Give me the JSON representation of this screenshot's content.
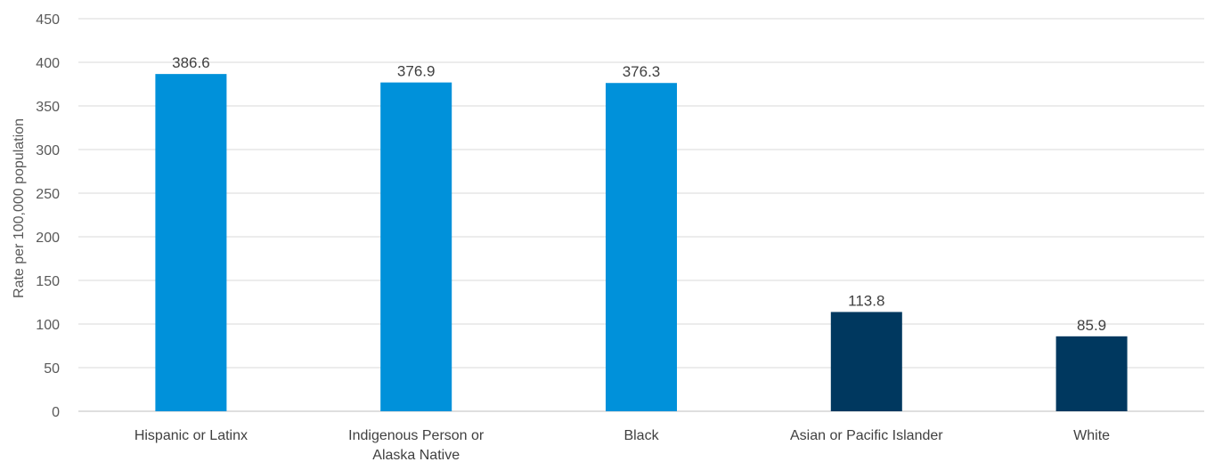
{
  "chart_data": {
    "type": "bar",
    "title": "",
    "xlabel": "",
    "ylabel": "Rate per 100,000 population",
    "ylim": [
      0,
      450
    ],
    "yticks": [
      0,
      50,
      100,
      150,
      200,
      250,
      300,
      350,
      400,
      450
    ],
    "grid": true,
    "categories": [
      [
        "Hispanic or Latinx"
      ],
      [
        "Indigenous Person or",
        "Alaska Native"
      ],
      [
        "Black"
      ],
      [
        "Asian or Pacific Islander"
      ],
      [
        "White"
      ]
    ],
    "values": [
      386.6,
      376.9,
      376.3,
      113.8,
      85.9
    ],
    "value_labels": [
      "386.6",
      "376.9",
      "376.3",
      "113.8",
      "85.9"
    ],
    "bar_colors": [
      "#0091da",
      "#0091da",
      "#0091da",
      "#00385f",
      "#00385f"
    ]
  }
}
